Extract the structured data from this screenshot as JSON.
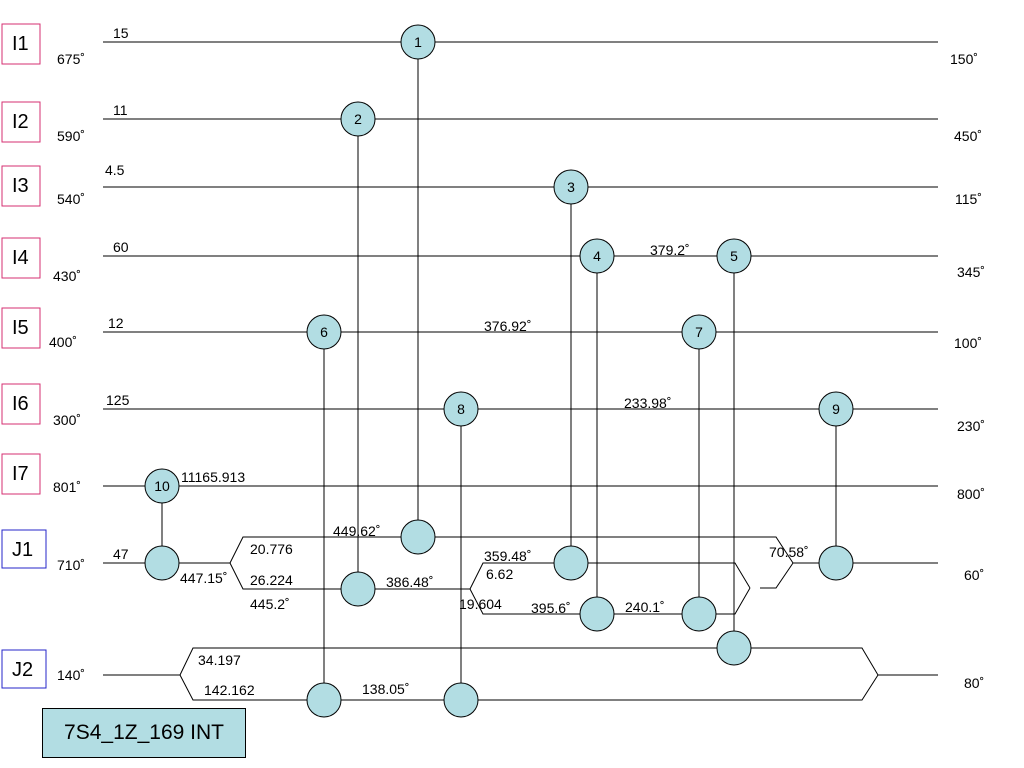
{
  "title": "7S4_1Z_169 INT",
  "colors": {
    "node_fill": "#b2dde3",
    "hot_stream_border": "#d62f72",
    "cold_stream_border": "#2424c8"
  },
  "streams": [
    {
      "id": "I1",
      "kind": "hot",
      "fcp": "15",
      "tin": "675˚",
      "tout": "150˚"
    },
    {
      "id": "I2",
      "kind": "hot",
      "fcp": "11",
      "tin": "590˚",
      "tout": "450˚"
    },
    {
      "id": "I3",
      "kind": "hot",
      "fcp": "4.5",
      "tin": "540˚",
      "tout": "115˚"
    },
    {
      "id": "I4",
      "kind": "hot",
      "fcp": "60",
      "tin": "430˚",
      "tout": "345˚"
    },
    {
      "id": "I5",
      "kind": "hot",
      "fcp": "12",
      "tin": "400˚",
      "tout": "100˚"
    },
    {
      "id": "I6",
      "kind": "hot",
      "fcp": "125",
      "tin": "300˚",
      "tout": "230˚"
    },
    {
      "id": "I7",
      "kind": "hot",
      "fcp": "11165.913",
      "tin": "801˚",
      "tout": "800˚"
    },
    {
      "id": "J1",
      "kind": "cold",
      "fcp": "47",
      "tin": "710˚",
      "tout": "60˚"
    },
    {
      "id": "J2",
      "kind": "cold",
      "fcp": "",
      "tin": "140˚",
      "tout": "80˚"
    }
  ],
  "exchangers": [
    "1",
    "2",
    "3",
    "4",
    "5",
    "6",
    "7",
    "8",
    "9",
    "10"
  ],
  "annotations": {
    "i4_mid": "379.2˚",
    "i5_mid": "376.92˚",
    "i6_mid": "233.98˚",
    "j1_after_10": "447.15˚",
    "j1_branch_top": "20.776",
    "j1_branch_bottom": "26.224",
    "j1_below": "445.2˚",
    "j1_ex1": "449.62˚",
    "j1_ex2": "386.48˚",
    "j1_ex3": "359.48˚",
    "j1_split_a": "6.62",
    "j1_split_b": "19.604",
    "j1_ex4": "395.6˚",
    "j1_ex7": "240.1˚",
    "j1_ex9": "70.58˚",
    "j2_branch_top": "34.197",
    "j2_branch_bottom": "142.162",
    "j2_ex8": "138.05˚"
  }
}
